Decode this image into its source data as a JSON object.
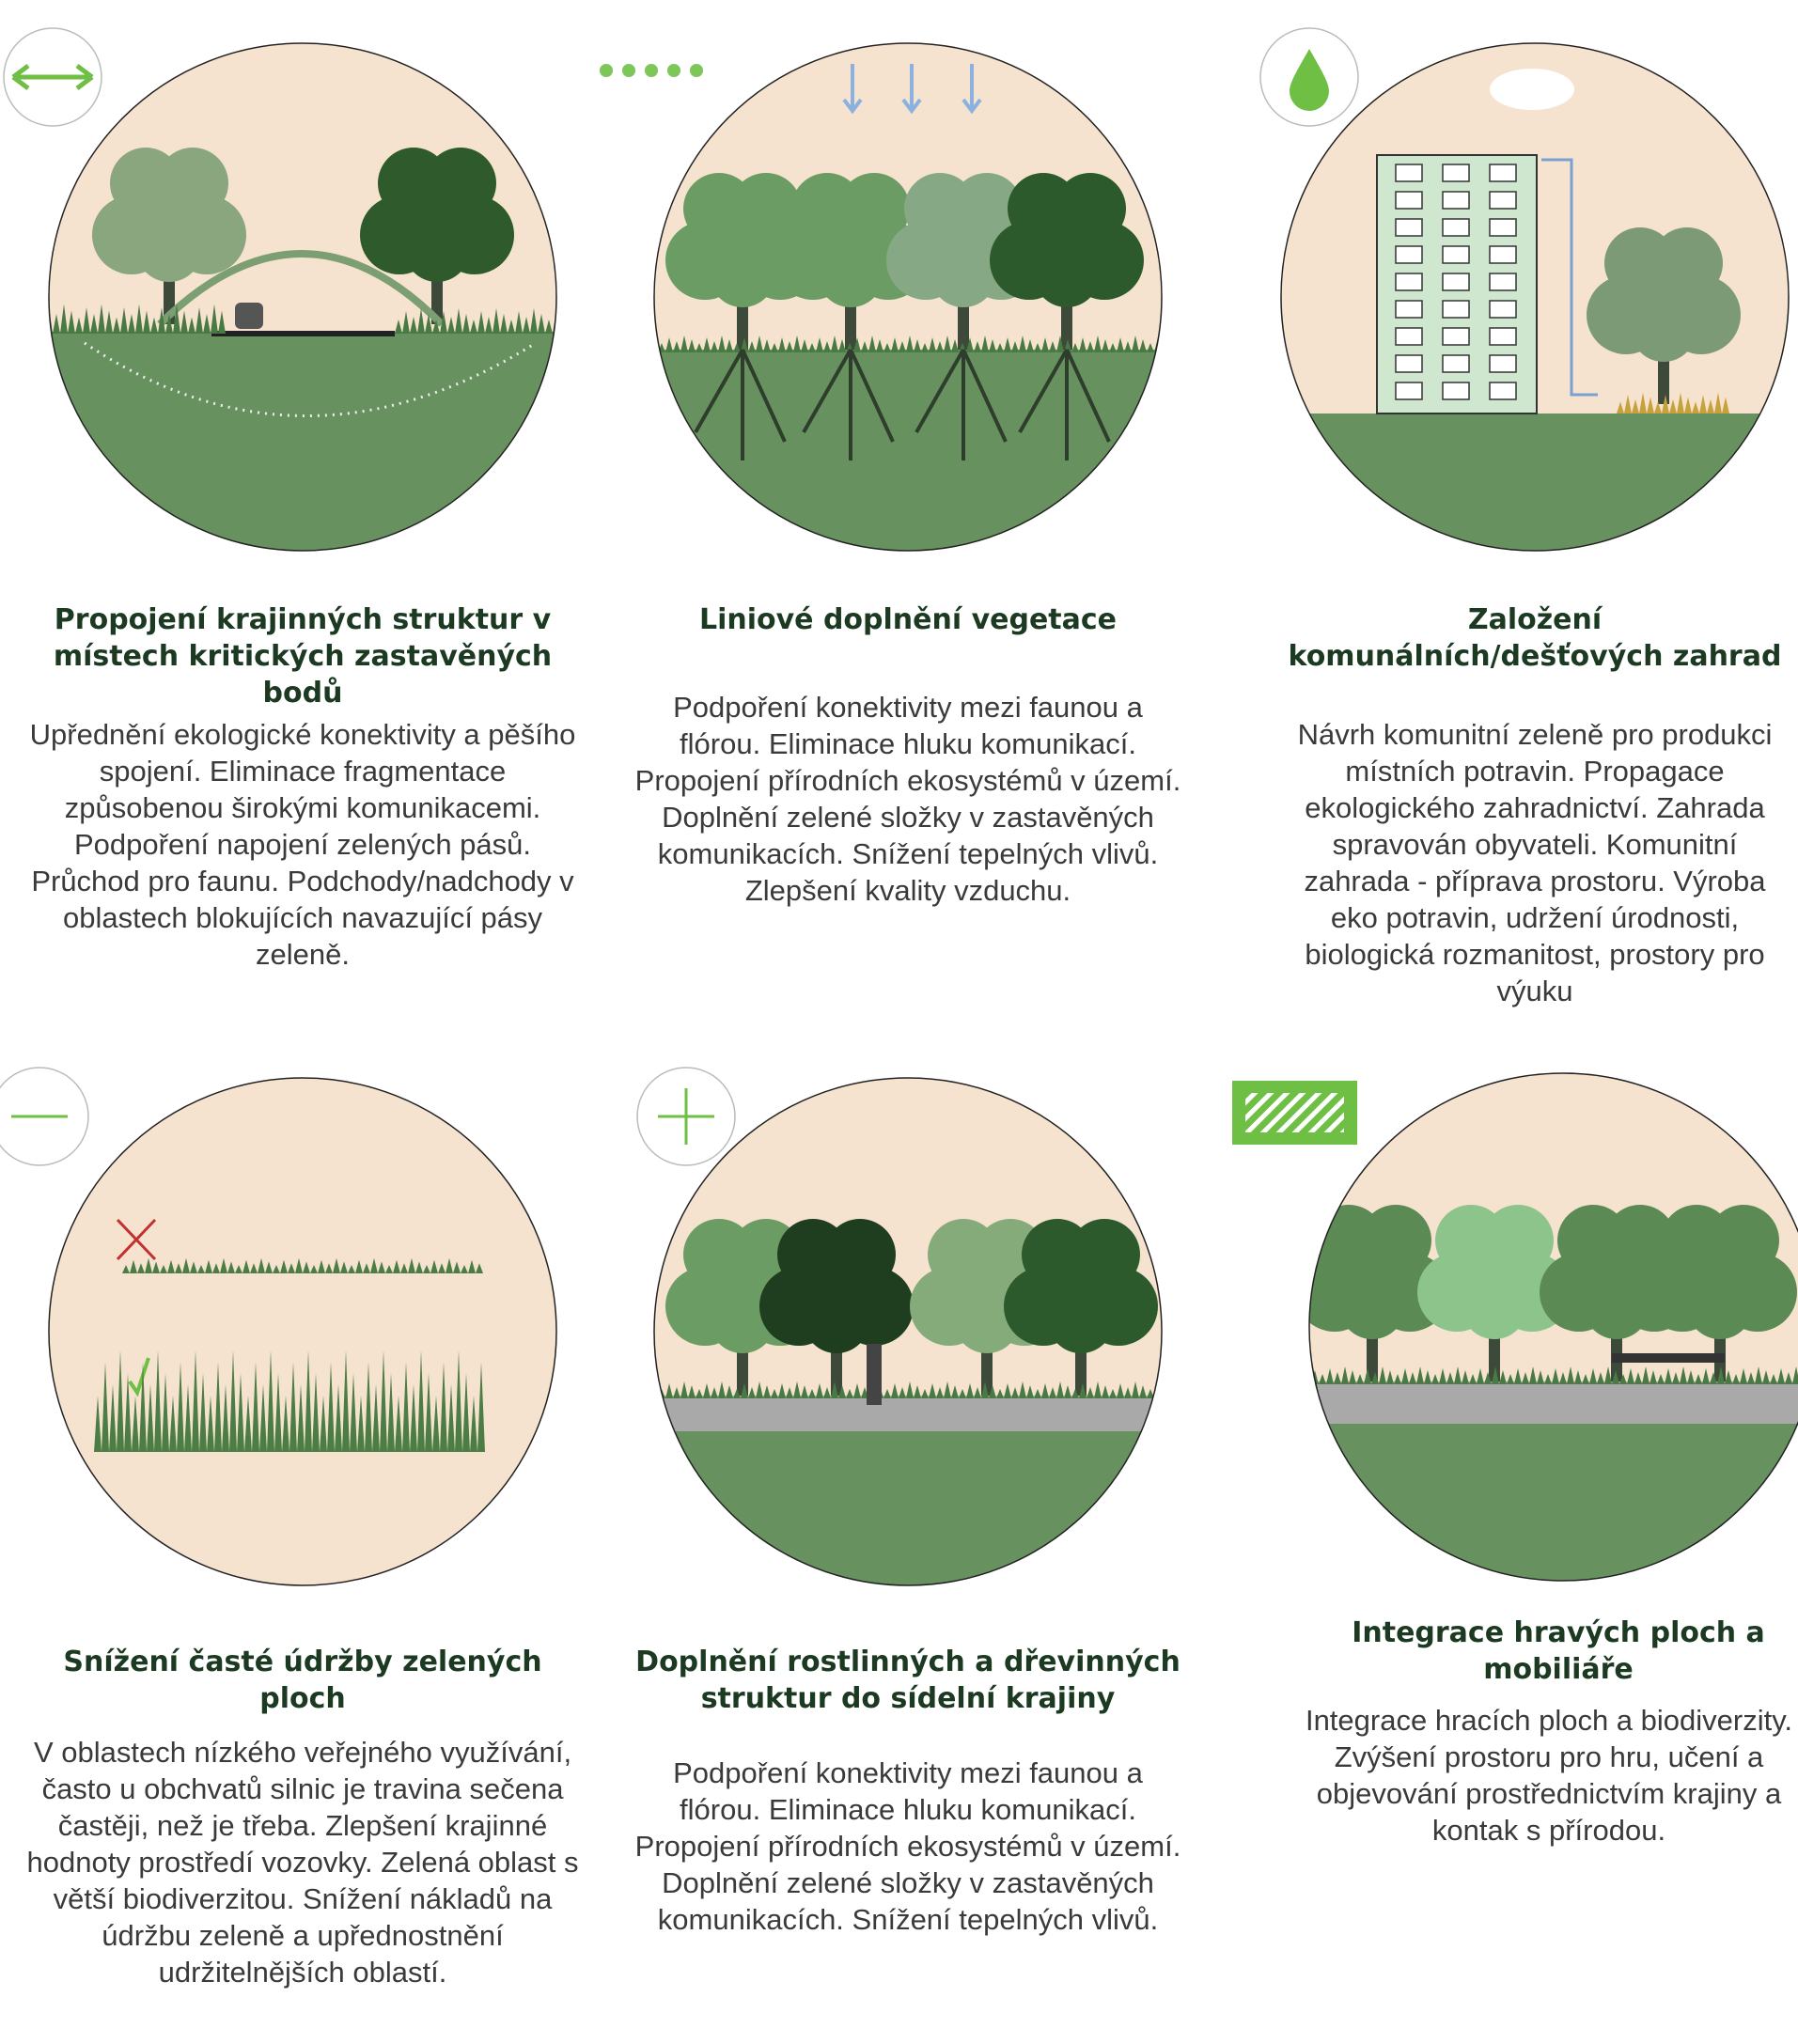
{
  "cards": [
    {
      "title": "Propojení krajinných struktur v místech kritických zastavěných bodů",
      "text": "Upřednění ekologické konektivity a pěšího spojení. Eliminace fragmentace způsobenou širokými komunikacemi. Podpoření napojení zelených pásů. Průchod pro faunu. Podchody/nadchody v oblastech blokujících navazující pásy zeleně."
    },
    {
      "title": "Liniové doplnění vegetace",
      "text": "Podpoření konektivity mezi faunou a flórou. Eliminace hluku komunikací. Propojení přírodních ekosystémů v území. Doplnění zelené složky v zastavěných komunikacích. Snížení tepelných vlivů. Zlepšení kvality vzduchu."
    },
    {
      "title": "Založení komunálních/dešťových zahrad",
      "text": "Návrh komunitní zeleně pro produkci místních potravin. Propagace ekologického zahradnictví. Zahrada spravován obyvateli. Komunitní zahrada - příprava prostoru. Výroba eko potravin, udržení úrodnosti, biologická rozmanitost, prostory pro výuku"
    },
    {
      "title": "Snížení časté údržby zelených ploch",
      "text": "V oblastech nízkého veřejného využívání, často u obchvatů silnic je travina sečena častěji, než je třeba. Zlepšení krajinné hodnoty prostředí vozovky. Zelená oblast s větší biodiverzitou. Snížení nákladů na údržbu zeleně a upřednostnění udržitelnějších oblastí."
    },
    {
      "title": "Doplnění rostlinných a dřevinných  struktur do sídelní krajiny",
      "text": "Podpoření konektivity mezi faunou a flórou. Eliminace hluku komunikací. Propojení přírodních ekosystémů v území. Doplnění zelené složky v zastavěných komunikacích. Snížení tepelných vlivů."
    },
    {
      "title": "Integrace hravých ploch a mobiliáře",
      "text": "Integrace hracích ploch a biodiverzity. Zvýšení prostoru pro hru, učení a objevování prostřednictvím krajiny a kontak s přírodou."
    }
  ]
}
